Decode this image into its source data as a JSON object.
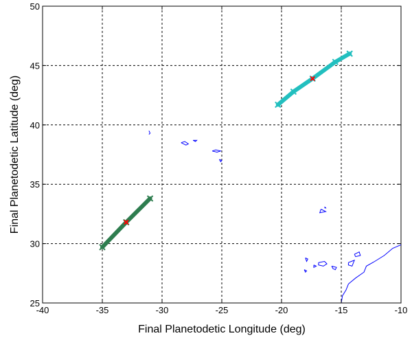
{
  "chart_data": {
    "type": "scatter",
    "title": "",
    "xlabel": "Final Planetodetic Longitude (deg)",
    "ylabel": "Final Planetodetic Latitude (deg)",
    "xlim": [
      -40,
      -10
    ],
    "ylim": [
      25,
      50
    ],
    "xticks": [
      -40,
      -35,
      -30,
      -25,
      -20,
      -15,
      -10
    ],
    "yticks": [
      25,
      30,
      35,
      40,
      45,
      50
    ],
    "xtick_labels": [
      "-40",
      "-35",
      "-30",
      "-25",
      "-20",
      "-15",
      "-10"
    ],
    "ytick_labels": [
      "25",
      "30",
      "35",
      "40",
      "45",
      "50"
    ],
    "grid": true,
    "grid_style": "dotted",
    "series": [
      {
        "kind": "band",
        "color": "#2e7d4f",
        "points": [
          [
            -35.0,
            29.7
          ],
          [
            -33.0,
            31.8
          ],
          [
            -31.0,
            33.8
          ]
        ]
      },
      {
        "kind": "band",
        "color": "#22bfbf",
        "points": [
          [
            -20.3,
            41.7
          ],
          [
            -19.0,
            42.8
          ],
          [
            -17.4,
            43.9
          ],
          [
            -15.5,
            45.3
          ],
          [
            -14.3,
            46.0
          ]
        ]
      },
      {
        "kind": "marker",
        "color": "#ff0000",
        "points": [
          [
            -33.0,
            31.8
          ],
          [
            -17.4,
            43.9
          ]
        ]
      }
    ],
    "coastline": {
      "color": "#0000ff",
      "paths": [
        [
          [
            -31.1,
            39.5
          ],
          [
            -31.0,
            39.3
          ],
          [
            -31.1,
            39.2
          ]
        ],
        [
          [
            -28.4,
            38.5
          ],
          [
            -28.1,
            38.6
          ],
          [
            -27.8,
            38.4
          ],
          [
            -28.0,
            38.3
          ],
          [
            -28.4,
            38.5
          ]
        ],
        [
          [
            -27.4,
            38.7
          ],
          [
            -27.1,
            38.7
          ],
          [
            -27.2,
            38.6
          ],
          [
            -27.4,
            38.7
          ]
        ],
        [
          [
            -25.8,
            37.8
          ],
          [
            -25.5,
            37.9
          ],
          [
            -25.1,
            37.8
          ],
          [
            -25.4,
            37.7
          ],
          [
            -25.8,
            37.8
          ]
        ],
        [
          [
            -25.2,
            37.1
          ],
          [
            -25.0,
            37.0
          ],
          [
            -25.1,
            36.9
          ],
          [
            -25.2,
            37.1
          ]
        ],
        [
          [
            -16.7,
            32.9
          ],
          [
            -16.3,
            32.7
          ],
          [
            -16.8,
            32.6
          ],
          [
            -16.7,
            32.9
          ]
        ],
        [
          [
            -16.4,
            33.1
          ],
          [
            -16.3,
            33.0
          ],
          [
            -16.4,
            33.0
          ]
        ],
        [
          [
            -18.0,
            28.8
          ],
          [
            -17.8,
            28.7
          ],
          [
            -17.9,
            28.5
          ],
          [
            -18.0,
            28.8
          ]
        ],
        [
          [
            -17.3,
            28.2
          ],
          [
            -17.1,
            28.1
          ],
          [
            -17.3,
            28.0
          ],
          [
            -17.3,
            28.2
          ]
        ],
        [
          [
            -18.1,
            27.8
          ],
          [
            -17.9,
            27.7
          ],
          [
            -18.0,
            27.6
          ],
          [
            -18.1,
            27.8
          ]
        ],
        [
          [
            -16.9,
            28.4
          ],
          [
            -16.4,
            28.5
          ],
          [
            -16.2,
            28.3
          ],
          [
            -16.5,
            28.1
          ],
          [
            -16.9,
            28.2
          ],
          [
            -16.9,
            28.4
          ]
        ],
        [
          [
            -15.8,
            28.1
          ],
          [
            -15.4,
            28.0
          ],
          [
            -15.5,
            27.8
          ],
          [
            -15.7,
            27.9
          ],
          [
            -15.8,
            28.1
          ]
        ],
        [
          [
            -14.4,
            28.4
          ],
          [
            -13.9,
            28.6
          ],
          [
            -14.1,
            28.1
          ],
          [
            -14.4,
            28.2
          ],
          [
            -14.4,
            28.4
          ]
        ],
        [
          [
            -13.9,
            29.1
          ],
          [
            -13.5,
            29.3
          ],
          [
            -13.4,
            29.0
          ],
          [
            -13.8,
            28.9
          ],
          [
            -13.9,
            29.1
          ]
        ],
        [
          [
            -15.0,
            25.0
          ],
          [
            -14.9,
            25.6
          ],
          [
            -14.6,
            26.1
          ],
          [
            -14.4,
            26.6
          ],
          [
            -13.8,
            27.1
          ],
          [
            -13.1,
            27.6
          ],
          [
            -12.9,
            28.1
          ],
          [
            -12.2,
            28.5
          ],
          [
            -11.4,
            29.0
          ],
          [
            -10.7,
            29.6
          ],
          [
            -10.0,
            29.9
          ]
        ]
      ]
    }
  }
}
